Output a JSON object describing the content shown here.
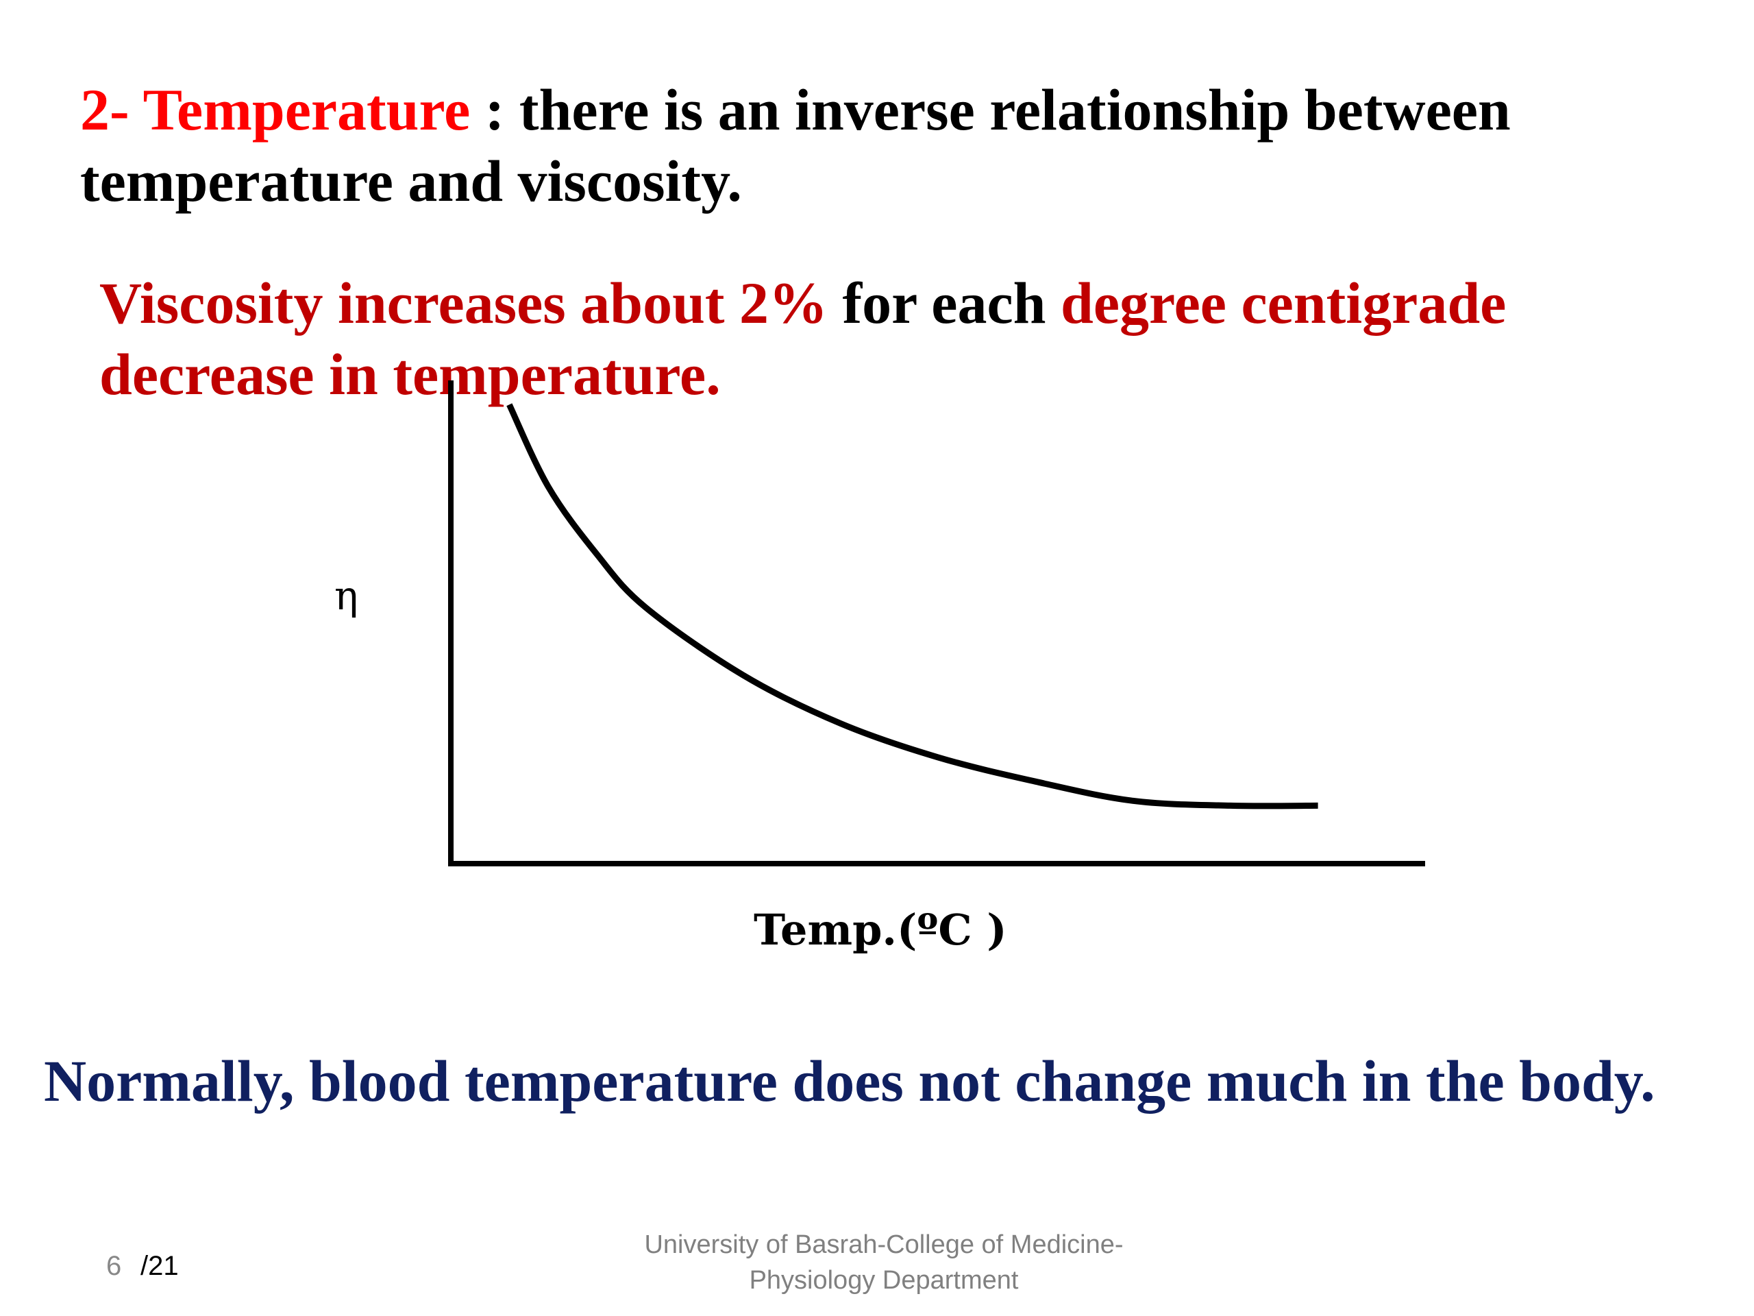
{
  "heading": {
    "prefix": "2- Temperature",
    "rest": " : there is an inverse relationship between temperature and viscosity."
  },
  "subpoint": {
    "part1": "Viscosity increases about 2%",
    "part2": " for each ",
    "part3": "degree centigrade decrease in temperature."
  },
  "conclusion": "Normally, blood temperature does not change much in the body.",
  "footer": {
    "page_number": "6",
    "page_total": "/21",
    "line1": "University of Basrah-College of Medicine-",
    "line2": "Physiology Department"
  },
  "colors": {
    "bright_red": "#ff0000",
    "dark_red": "#c00000",
    "navy": "#102060",
    "footer_gray": "#808080"
  },
  "chart_data": {
    "type": "line",
    "xlabel": "Temp.(ºC )",
    "ylabel": "η",
    "grid": false,
    "legend": "none",
    "series": [
      {
        "x": [
          0.06,
          0.1,
          0.15,
          0.2,
          0.3,
          0.4,
          0.5,
          0.6,
          0.7,
          0.8,
          0.89
        ],
        "values": [
          0.95,
          0.78,
          0.64,
          0.53,
          0.39,
          0.29,
          0.22,
          0.17,
          0.13,
          0.12,
          0.12
        ]
      }
    ]
  }
}
